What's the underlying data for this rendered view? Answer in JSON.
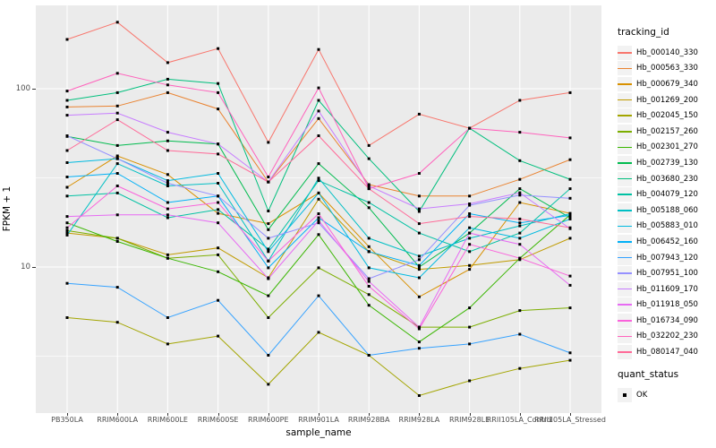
{
  "chart_data": {
    "type": "line",
    "title": "",
    "xlabel": "sample_name",
    "ylabel": "FPKM + 1",
    "x_type": "categorical",
    "y_scale": "log10",
    "y_tick_labels": [
      "100",
      "10"
    ],
    "y_tick_values": [
      100,
      10
    ],
    "y_minor_values": [
      31.6,
      3.16
    ],
    "ylim": [
      1.5,
      293
    ],
    "grid": "on",
    "panel_bg": "#EBEBEB",
    "grid_color": "#FFFFFF",
    "marker": {
      "shape": "square",
      "color": "#000000",
      "size": 3
    },
    "legend_position": "right",
    "categories": [
      "PB350LA",
      "RRIM600LA",
      "RRIM600LE",
      "RRIM600SE",
      "RRIM600PE",
      "RRIM901LA",
      "RRIM928BA",
      "RRIM928LA",
      "RRIM928LE",
      "RRII105LA_Control",
      "RRII105LA_Stressed"
    ],
    "series": [
      {
        "name": "Hb_000140_330",
        "color": "#F8766D",
        "values": [
          189,
          236,
          140,
          168,
          50,
          166,
          48,
          72,
          60,
          86,
          95
        ]
      },
      {
        "name": "Hb_000563_330",
        "color": "#EA8331",
        "values": [
          79,
          80,
          95,
          77,
          30,
          68,
          29,
          25,
          25,
          31,
          40
        ]
      },
      {
        "name": "Hb_000679_340",
        "color": "#D89000",
        "values": [
          28,
          42,
          33,
          20,
          17.5,
          26,
          13,
          6.8,
          9.7,
          23,
          20
        ]
      },
      {
        "name": "Hb_001269_200",
        "color": "#C09B00",
        "values": [
          15.5,
          14.5,
          11.7,
          12.8,
          8.7,
          24,
          12.2,
          9.7,
          10.2,
          11,
          14.5
        ]
      },
      {
        "name": "Hb_002045_150",
        "color": "#A3A500",
        "values": [
          5.2,
          4.9,
          3.7,
          4.1,
          2.2,
          4.3,
          3.2,
          1.9,
          2.3,
          2.7,
          3.0
        ]
      },
      {
        "name": "Hb_002157_260",
        "color": "#7CAE00",
        "values": [
          16,
          14.5,
          11.2,
          11.7,
          5.2,
          9.9,
          7,
          4.6,
          4.6,
          5.7,
          5.9
        ]
      },
      {
        "name": "Hb_002301_270",
        "color": "#39B600",
        "values": [
          17.7,
          13.9,
          11.2,
          9.4,
          6.9,
          15.2,
          6.1,
          3.8,
          5.9,
          11.2,
          19.6
        ]
      },
      {
        "name": "Hb_002739_130",
        "color": "#00BB4E",
        "values": [
          54,
          48,
          51,
          49,
          16.2,
          38,
          21.5,
          10,
          15.5,
          27.5,
          18.9
        ]
      },
      {
        "name": "Hb_003680_230",
        "color": "#00BF7D",
        "values": [
          86,
          95,
          113,
          107,
          20.6,
          86,
          40.5,
          20.5,
          60,
          39.5,
          31
        ]
      },
      {
        "name": "Hb_004079_120",
        "color": "#00C1A3",
        "values": [
          25,
          26,
          18.9,
          21,
          12.6,
          30.5,
          23,
          15.5,
          12.2,
          15.5,
          27.5
        ]
      },
      {
        "name": "Hb_005188_060",
        "color": "#00BFC4",
        "values": [
          15.1,
          38,
          28.5,
          29.5,
          10.8,
          31.5,
          14.5,
          11.5,
          14.5,
          17,
          19.9
        ]
      },
      {
        "name": "Hb_005883_010",
        "color": "#00BAE0",
        "values": [
          38.5,
          40.5,
          30.5,
          33.5,
          12.2,
          26,
          9.9,
          8.7,
          16.6,
          14.5,
          18.6
        ]
      },
      {
        "name": "Hb_006452_160",
        "color": "#00B0F6",
        "values": [
          32,
          33.5,
          23,
          25,
          9.9,
          18.9,
          12.2,
          10.2,
          19.9,
          17.7,
          19.5
        ]
      },
      {
        "name": "Hb_007943_120",
        "color": "#35A2FF",
        "values": [
          8.1,
          7.7,
          5.2,
          6.5,
          3.2,
          6.9,
          3.2,
          3.5,
          3.7,
          4.2,
          3.3
        ]
      },
      {
        "name": "Hb_007951_100",
        "color": "#9590FF",
        "values": [
          54.5,
          40.5,
          29.5,
          25,
          14.5,
          17.7,
          8.6,
          11,
          22.2,
          25.3,
          24.3
        ]
      },
      {
        "name": "Hb_011609_170",
        "color": "#C77CFF",
        "values": [
          71,
          73,
          57,
          49,
          30,
          75,
          28.5,
          21.2,
          22.6,
          26.1,
          16.4
        ]
      },
      {
        "name": "Hb_011918_050",
        "color": "#E76BF3",
        "values": [
          19.2,
          19.6,
          19.6,
          17.7,
          8.6,
          18.2,
          8.3,
          4.6,
          15.5,
          13.4,
          7.9
        ]
      },
      {
        "name": "Hb_016734_090",
        "color": "#FA62DB",
        "values": [
          16.6,
          28.5,
          21.2,
          23,
          10.8,
          19.9,
          7.8,
          4.5,
          13.4,
          11.2,
          8.9
        ]
      },
      {
        "name": "Hb_032202_230",
        "color": "#FF62BC",
        "values": [
          97,
          122,
          105,
          95,
          32,
          101,
          27.5,
          33.5,
          60,
          57,
          53
        ]
      },
      {
        "name": "Hb_080147_040",
        "color": "#FF6A98",
        "values": [
          45,
          67,
          45,
          43,
          30,
          54.5,
          27.5,
          17.5,
          19.2,
          18.6,
          16.6
        ]
      }
    ],
    "legend_color": {
      "title": "tracking_id"
    },
    "legend_shape": {
      "title": "quant_status",
      "items": [
        {
          "label": "OK"
        }
      ]
    }
  }
}
